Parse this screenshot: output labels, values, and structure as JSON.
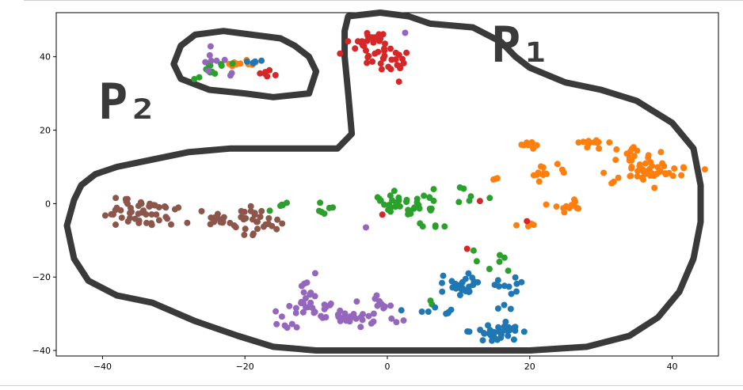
{
  "chart_data": {
    "type": "scatter",
    "title": "",
    "xlabel": "",
    "ylabel": "",
    "xlim": [
      -46.5,
      46.5
    ],
    "ylim": [
      -41.5,
      52
    ],
    "grid": false,
    "x_ticks": [
      -40,
      -20,
      0,
      20,
      40
    ],
    "y_ticks": [
      -40,
      -20,
      0,
      20,
      40
    ],
    "x_tick_labels": [
      "−40",
      "−20",
      "0",
      "20",
      "40"
    ],
    "y_tick_labels": [
      "−40",
      "−20",
      "0",
      "20",
      "40"
    ],
    "annotations": [
      {
        "text": "P₁",
        "x": 16,
        "y": 45
      },
      {
        "text": "P₂",
        "x": -38,
        "y": 29
      }
    ],
    "colors": {
      "blue": "#1f77b4",
      "orange": "#ff7f0e",
      "green": "#2ca02c",
      "red": "#d62728",
      "purple": "#9467bd",
      "brown": "#8c564b",
      "outline": "#3a3a3a"
    },
    "outline_P1": [
      [
        -5.5,
        51
      ],
      [
        -1,
        52
      ],
      [
        3,
        51
      ],
      [
        6,
        49
      ],
      [
        12,
        48
      ],
      [
        16,
        44
      ],
      [
        18,
        40
      ],
      [
        20,
        37
      ],
      [
        25,
        33
      ],
      [
        30,
        31
      ],
      [
        35,
        28
      ],
      [
        40,
        22
      ],
      [
        43,
        15
      ],
      [
        44,
        5
      ],
      [
        44,
        -5
      ],
      [
        43,
        -15
      ],
      [
        41,
        -24
      ],
      [
        38,
        -31
      ],
      [
        34,
        -36
      ],
      [
        28,
        -39
      ],
      [
        20,
        -40
      ],
      [
        10,
        -40
      ],
      [
        0,
        -40
      ],
      [
        -10,
        -40
      ],
      [
        -16,
        -39
      ],
      [
        -21,
        -36
      ],
      [
        -27,
        -32
      ],
      [
        -33,
        -27
      ],
      [
        -38,
        -25
      ],
      [
        -42,
        -21
      ],
      [
        -44,
        -15
      ],
      [
        -45,
        -6
      ],
      [
        -44,
        1
      ],
      [
        -43,
        5
      ],
      [
        -41,
        8
      ],
      [
        -38,
        10
      ],
      [
        -33,
        12
      ],
      [
        -28,
        14
      ],
      [
        -22,
        15
      ],
      [
        -16,
        15
      ],
      [
        -10,
        15
      ],
      [
        -7,
        15
      ],
      [
        -5,
        19
      ],
      [
        -5.5,
        30
      ],
      [
        -6,
        40
      ],
      [
        -6,
        47
      ],
      [
        -5.5,
        51
      ]
    ],
    "outline_P2": [
      [
        -23,
        47
      ],
      [
        -19,
        46
      ],
      [
        -15,
        45
      ],
      [
        -13,
        43
      ],
      [
        -11,
        40
      ],
      [
        -10,
        36
      ],
      [
        -11,
        30
      ],
      [
        -16,
        29
      ],
      [
        -20,
        30
      ],
      [
        -25,
        31
      ],
      [
        -29,
        34
      ],
      [
        -30,
        38
      ],
      [
        -29,
        43
      ],
      [
        -27,
        46
      ],
      [
        -23,
        47
      ]
    ],
    "clusters": [
      {
        "color": "red",
        "cx": -2.5,
        "cy": 45,
        "sx": 1.2,
        "sy": 1.1,
        "n": 18,
        "seed": 11
      },
      {
        "color": "red",
        "cx": 0,
        "cy": 40,
        "sx": 2.5,
        "sy": 2.2,
        "n": 34,
        "seed": 12
      },
      {
        "color": "purple",
        "cx": 2.5,
        "cy": 46.5,
        "sx": 0.2,
        "sy": 0.2,
        "n": 1,
        "seed": 13
      },
      {
        "color": "orange",
        "cx": 20,
        "cy": 16,
        "sx": 0.7,
        "sy": 0.6,
        "n": 8,
        "seed": 21
      },
      {
        "color": "orange",
        "cx": 28.5,
        "cy": 16.5,
        "sx": 1.2,
        "sy": 0.8,
        "n": 12,
        "seed": 22
      },
      {
        "color": "orange",
        "cx": 36,
        "cy": 13,
        "sx": 1.8,
        "sy": 1.2,
        "n": 16,
        "seed": 23
      },
      {
        "color": "orange",
        "cx": 36,
        "cy": 8,
        "sx": 2.8,
        "sy": 1.6,
        "n": 42,
        "seed": 24
      },
      {
        "color": "orange",
        "cx": 22.5,
        "cy": 8,
        "sx": 1.2,
        "sy": 1.0,
        "n": 14,
        "seed": 25
      },
      {
        "color": "orange",
        "cx": 25.5,
        "cy": 0,
        "sx": 1.6,
        "sy": 1.2,
        "n": 14,
        "seed": 26
      },
      {
        "color": "orange",
        "cx": 15,
        "cy": 6.8,
        "sx": 0.4,
        "sy": 0.3,
        "n": 3,
        "seed": 27
      },
      {
        "color": "orange",
        "cx": 20,
        "cy": -5.8,
        "sx": 0.8,
        "sy": 0.3,
        "n": 4,
        "seed": 28
      },
      {
        "color": "red",
        "cx": 19.6,
        "cy": -4.8,
        "sx": 0.2,
        "sy": 0.2,
        "n": 1,
        "seed": 29
      },
      {
        "color": "green",
        "cx": 2,
        "cy": 0,
        "sx": 2.8,
        "sy": 1.6,
        "n": 40,
        "seed": 31
      },
      {
        "color": "green",
        "cx": -8.5,
        "cy": -1.5,
        "sx": 1.2,
        "sy": 0.9,
        "n": 6,
        "seed": 32
      },
      {
        "color": "green",
        "cx": -14.5,
        "cy": -1.5,
        "sx": 1.3,
        "sy": 1.2,
        "n": 5,
        "seed": 33
      },
      {
        "color": "green",
        "cx": 11.5,
        "cy": 1.5,
        "sx": 1.2,
        "sy": 1.5,
        "n": 6,
        "seed": 34
      },
      {
        "color": "green",
        "cx": 6.5,
        "cy": -6,
        "sx": 1.2,
        "sy": 0.9,
        "n": 5,
        "seed": 35
      },
      {
        "color": "green",
        "cx": 15,
        "cy": -15,
        "sx": 1.8,
        "sy": 1.8,
        "n": 7,
        "seed": 36
      },
      {
        "color": "green",
        "cx": 6.5,
        "cy": -27,
        "sx": 0.4,
        "sy": 0.3,
        "n": 2,
        "seed": 37
      },
      {
        "color": "red",
        "cx": -0.7,
        "cy": -3,
        "sx": 0.1,
        "sy": 0.1,
        "n": 1,
        "seed": 38
      },
      {
        "color": "red",
        "cx": 13,
        "cy": 0.7,
        "sx": 0.1,
        "sy": 0.1,
        "n": 1,
        "seed": 39
      },
      {
        "color": "red",
        "cx": 11.2,
        "cy": -12.3,
        "sx": 0.1,
        "sy": 0.1,
        "n": 1,
        "seed": 40
      },
      {
        "color": "purple",
        "cx": -3,
        "cy": -6.5,
        "sx": 0.1,
        "sy": 0.1,
        "n": 1,
        "seed": 41
      },
      {
        "color": "brown",
        "cx": -35,
        "cy": -2.5,
        "sx": 3,
        "sy": 2.2,
        "n": 48,
        "seed": 51
      },
      {
        "color": "brown",
        "cx": -20.5,
        "cy": -5,
        "sx": 3,
        "sy": 1.8,
        "n": 46,
        "seed": 52
      },
      {
        "color": "blue",
        "cx": 10,
        "cy": -22,
        "sx": 1.6,
        "sy": 1.6,
        "n": 26,
        "seed": 61
      },
      {
        "color": "blue",
        "cx": 16.5,
        "cy": -22,
        "sx": 1.1,
        "sy": 1.2,
        "n": 10,
        "seed": 62
      },
      {
        "color": "blue",
        "cx": 15,
        "cy": -35,
        "sx": 1.8,
        "sy": 1.3,
        "n": 34,
        "seed": 63
      },
      {
        "color": "blue",
        "cx": 5,
        "cy": -29,
        "sx": 1.2,
        "sy": 0.8,
        "n": 4,
        "seed": 64
      },
      {
        "color": "blue",
        "cx": 8.5,
        "cy": -30,
        "sx": 0.6,
        "sy": 0.8,
        "n": 4,
        "seed": 65
      },
      {
        "color": "blue",
        "cx": 16.5,
        "cy": -29,
        "sx": 0.6,
        "sy": 0.6,
        "n": 3,
        "seed": 66
      },
      {
        "color": "purple",
        "cx": -10.5,
        "cy": -24,
        "sx": 1.2,
        "sy": 2.2,
        "n": 10,
        "seed": 71
      },
      {
        "color": "purple",
        "cx": -11,
        "cy": -29,
        "sx": 2.8,
        "sy": 1.6,
        "n": 22,
        "seed": 72
      },
      {
        "color": "purple",
        "cx": -5,
        "cy": -30,
        "sx": 1.8,
        "sy": 1.4,
        "n": 22,
        "seed": 73
      },
      {
        "color": "purple",
        "cx": -1.5,
        "cy": -26.5,
        "sx": 1.2,
        "sy": 1.3,
        "n": 10,
        "seed": 74
      },
      {
        "color": "purple",
        "cx": -14,
        "cy": -33,
        "sx": 0.9,
        "sy": 0.4,
        "n": 5,
        "seed": 75
      },
      {
        "color": "purple",
        "cx": 0.5,
        "cy": -32,
        "sx": 1.0,
        "sy": 0.5,
        "n": 4,
        "seed": 76
      },
      {
        "color": "green",
        "cx": -25.5,
        "cy": 36,
        "sx": 0.8,
        "sy": 2.0,
        "n": 8,
        "seed": 81
      },
      {
        "color": "purple",
        "cx": -24.5,
        "cy": 39,
        "sx": 0.7,
        "sy": 1.4,
        "n": 7,
        "seed": 82
      },
      {
        "color": "orange",
        "cx": -21.5,
        "cy": 38,
        "sx": 0.6,
        "sy": 0.5,
        "n": 6,
        "seed": 83
      },
      {
        "color": "green",
        "cx": -22.5,
        "cy": 38,
        "sx": 0.6,
        "sy": 0.5,
        "n": 3,
        "seed": 84
      },
      {
        "color": "purple",
        "cx": -22.5,
        "cy": 35,
        "sx": 0.4,
        "sy": 0.5,
        "n": 2,
        "seed": 85
      },
      {
        "color": "orange",
        "cx": -19.5,
        "cy": 38.3,
        "sx": 0.7,
        "sy": 0.4,
        "n": 5,
        "seed": 86
      },
      {
        "color": "blue",
        "cx": -18.3,
        "cy": 38.5,
        "sx": 0.8,
        "sy": 0.4,
        "n": 5,
        "seed": 87
      },
      {
        "color": "red",
        "cx": -16.5,
        "cy": 35.5,
        "sx": 0.6,
        "sy": 0.4,
        "n": 6,
        "seed": 88
      }
    ]
  }
}
